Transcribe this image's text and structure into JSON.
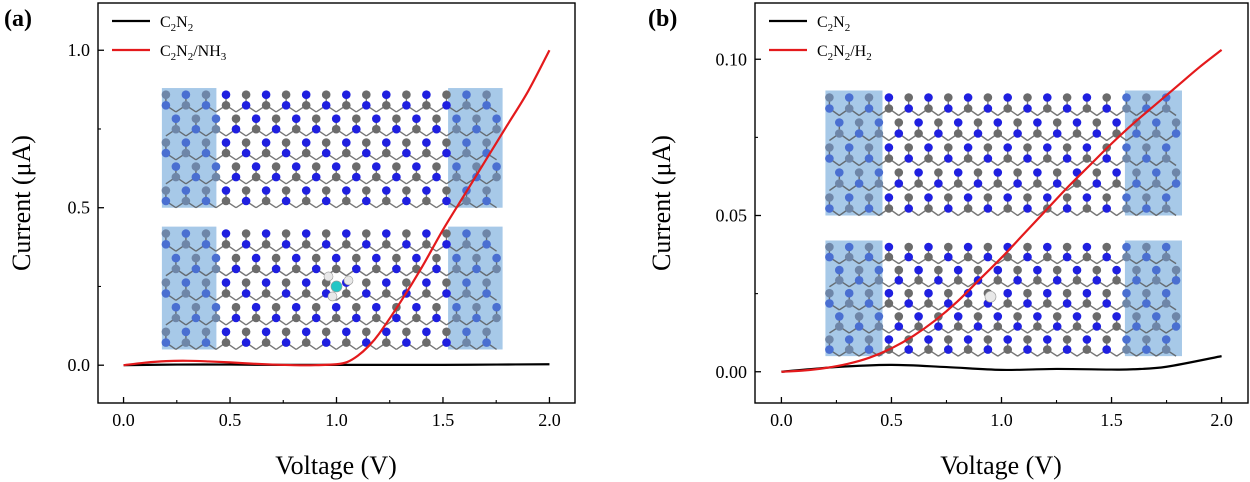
{
  "chart_data": [
    {
      "type": "line",
      "panel_label": "(a)",
      "xlabel": "Voltage (V)",
      "ylabel": "Current (μA)",
      "xlim": [
        -0.12,
        2.12
      ],
      "ylim": [
        -0.12,
        1.15
      ],
      "xticks": [
        0.0,
        0.5,
        1.0,
        1.5,
        2.0
      ],
      "xtick_labels": [
        "0.0",
        "0.5",
        "1.0",
        "1.5",
        "2.0"
      ],
      "yticks": [
        0.0,
        0.5,
        1.0
      ],
      "ytick_labels": [
        "0.0",
        "0.5",
        "1.0"
      ],
      "legend_position": "top-left",
      "inset": {
        "description": "two C2N2 nanoribbon device structures with NH3 adsorbed on the lower one",
        "top_x_range": [
          0.18,
          1.78
        ],
        "top_y_range": [
          0.5,
          0.88
        ],
        "bottom_x_range": [
          0.18,
          1.78
        ],
        "bottom_y_range": [
          0.05,
          0.44
        ],
        "adsorbate_x": 1.0,
        "adsorbate_y": 0.25,
        "adsorbate": "NH3"
      },
      "series": [
        {
          "name": "C2N2",
          "legend": {
            "main": "C",
            "sub1": "2",
            "main2": "N",
            "sub2": "2",
            "tail": "",
            "sub3": ""
          },
          "color": "#000000",
          "x": [
            0.0,
            0.25,
            0.5,
            0.75,
            1.0,
            1.25,
            1.5,
            1.75,
            2.0
          ],
          "y": [
            0.0,
            0.002,
            0.002,
            0.001,
            0.001,
            0.001,
            0.001,
            0.002,
            0.003
          ]
        },
        {
          "name": "C2N2/NH3",
          "legend": {
            "main": "C",
            "sub1": "2",
            "main2": "N",
            "sub2": "2",
            "tail": "/NH",
            "sub3": "3"
          },
          "color": "#e41a1c",
          "x": [
            0.0,
            0.1,
            0.2,
            0.3,
            0.4,
            0.5,
            0.6,
            0.7,
            0.8,
            0.9,
            1.0,
            1.05,
            1.1,
            1.15,
            1.2,
            1.3,
            1.4,
            1.5,
            1.6,
            1.7,
            1.8,
            1.9,
            2.0
          ],
          "y": [
            0.0,
            0.008,
            0.013,
            0.014,
            0.012,
            0.009,
            0.005,
            0.002,
            0.0,
            0.0,
            0.003,
            0.01,
            0.03,
            0.06,
            0.1,
            0.2,
            0.31,
            0.43,
            0.54,
            0.65,
            0.76,
            0.87,
            1.0
          ]
        }
      ]
    },
    {
      "type": "line",
      "panel_label": "(b)",
      "xlabel": "Voltage (V)",
      "ylabel": "Current (μA)",
      "xlim": [
        -0.12,
        2.12
      ],
      "ylim": [
        -0.01,
        0.118
      ],
      "xticks": [
        0.0,
        0.5,
        1.0,
        1.5,
        2.0
      ],
      "xtick_labels": [
        "0.0",
        "0.5",
        "1.0",
        "1.5",
        "2.0"
      ],
      "yticks": [
        0.0,
        0.05,
        0.1
      ],
      "ytick_labels": [
        "0.00",
        "0.05",
        "0.10"
      ],
      "legend_position": "top-left",
      "inset": {
        "description": "two C2N2 nanoribbon device structures with H2 adsorbed on the lower one",
        "top_x_range": [
          0.2,
          1.82
        ],
        "top_y_range": [
          0.05,
          0.09
        ],
        "bottom_x_range": [
          0.2,
          1.82
        ],
        "bottom_y_range": [
          0.005,
          0.042
        ],
        "adsorbate_x": 0.95,
        "adsorbate_y": 0.024,
        "adsorbate": "H2"
      },
      "series": [
        {
          "name": "C2N2",
          "legend": {
            "main": "C",
            "sub1": "2",
            "main2": "N",
            "sub2": "2",
            "tail": "",
            "sub3": ""
          },
          "color": "#000000",
          "x": [
            0.0,
            0.25,
            0.5,
            0.75,
            1.0,
            1.25,
            1.5,
            1.6,
            1.75,
            2.0
          ],
          "y": [
            0.0,
            0.0015,
            0.0022,
            0.0015,
            0.0006,
            0.0009,
            0.0007,
            0.0008,
            0.0016,
            0.005
          ]
        },
        {
          "name": "C2N2/H2",
          "legend": {
            "main": "C",
            "sub1": "2",
            "main2": "N",
            "sub2": "2",
            "tail": "/H",
            "sub3": "2"
          },
          "color": "#e41a1c",
          "x": [
            0.0,
            0.1,
            0.2,
            0.3,
            0.4,
            0.5,
            0.6,
            0.7,
            0.8,
            0.9,
            1.0,
            1.1,
            1.2,
            1.3,
            1.4,
            1.5,
            1.6,
            1.7,
            1.8,
            1.9,
            2.0
          ],
          "y": [
            0.0,
            0.0004,
            0.0012,
            0.0025,
            0.0045,
            0.0075,
            0.0115,
            0.0165,
            0.0225,
            0.0295,
            0.0365,
            0.044,
            0.0515,
            0.059,
            0.066,
            0.073,
            0.0795,
            0.0855,
            0.0915,
            0.0975,
            0.103
          ]
        }
      ]
    }
  ]
}
